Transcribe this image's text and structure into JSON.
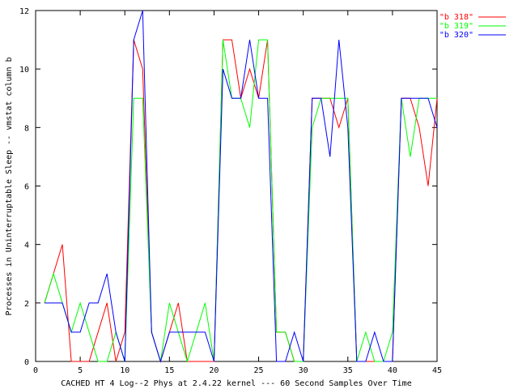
{
  "chart_data": {
    "type": "line",
    "xlabel": "CACHED HT 4 Log--2 Phys at 2.4.22 kernel --- 60 Second Samples Over Time",
    "ylabel": "Processes in Uninterruptable Sleep -- vmstat column b",
    "xlim": [
      0,
      45
    ],
    "ylim": [
      0,
      12
    ],
    "x_ticks": [
      0,
      5,
      10,
      15,
      20,
      25,
      30,
      35,
      40,
      45
    ],
    "y_ticks": [
      0,
      2,
      4,
      6,
      8,
      10,
      12
    ],
    "legend_position": "top-right",
    "grid": false,
    "x": [
      1,
      2,
      3,
      4,
      5,
      6,
      7,
      8,
      9,
      10,
      11,
      12,
      13,
      14,
      15,
      16,
      17,
      18,
      19,
      20,
      21,
      22,
      23,
      24,
      25,
      26,
      27,
      28,
      29,
      30,
      31,
      32,
      33,
      34,
      35,
      36,
      37,
      38,
      39,
      40,
      41,
      42,
      43,
      44,
      45
    ],
    "series": [
      {
        "name": "\"b 318\"",
        "color": "#ff0000",
        "values": [
          2,
          3,
          4,
          0,
          0,
          0,
          1,
          2,
          0,
          1,
          11,
          10,
          1,
          0,
          1,
          2,
          0,
          0,
          0,
          0,
          11,
          11,
          9,
          10,
          9,
          11,
          1,
          1,
          0,
          0,
          9,
          9,
          9,
          8,
          9,
          0,
          0,
          0,
          0,
          0,
          9,
          9,
          8,
          6,
          9
        ]
      },
      {
        "name": "\"b 319\"",
        "color": "#00ff00",
        "values": [
          2,
          3,
          2,
          1,
          2,
          1,
          0,
          0,
          1,
          0,
          9,
          9,
          1,
          0,
          2,
          1,
          0,
          1,
          2,
          0,
          11,
          9,
          9,
          8,
          11,
          11,
          1,
          1,
          0,
          0,
          8,
          9,
          9,
          9,
          9,
          0,
          1,
          0,
          0,
          1,
          9,
          7,
          9,
          9,
          9
        ]
      },
      {
        "name": "\"b 320\"",
        "color": "#0000ff",
        "values": [
          2,
          2,
          2,
          1,
          1,
          2,
          2,
          3,
          1,
          0,
          11,
          12,
          1,
          0,
          1,
          1,
          1,
          1,
          1,
          0,
          10,
          9,
          9,
          11,
          9,
          9,
          0,
          0,
          1,
          0,
          9,
          9,
          7,
          11,
          8,
          0,
          0,
          1,
          0,
          0,
          9,
          9,
          9,
          9,
          8
        ]
      }
    ]
  }
}
